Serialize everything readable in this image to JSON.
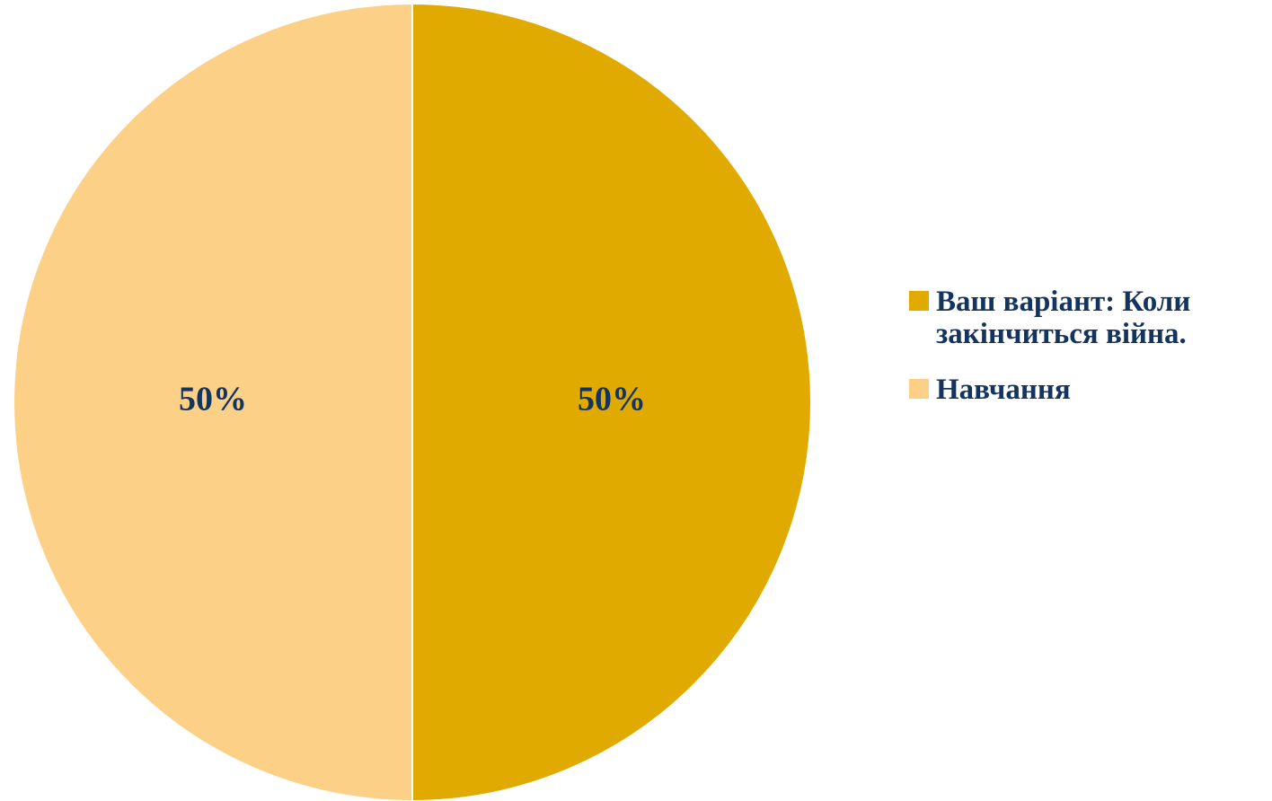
{
  "chart_data": {
    "type": "pie",
    "categories": [
      "Ваш варіант: Коли закінчиться війна.",
      "Навчання"
    ],
    "values": [
      50,
      50
    ],
    "data_labels": [
      "50%",
      "50%"
    ],
    "legend_labels": [
      "Ваш варіант: Коли\nзакінчиться війна.",
      "Навчання"
    ],
    "colors": [
      "#e0aa00",
      "#fdd087"
    ],
    "start_angle": "12 o'clock",
    "direction": "clockwise",
    "legend_position": "right",
    "label_color": "#13345e",
    "title": ""
  }
}
